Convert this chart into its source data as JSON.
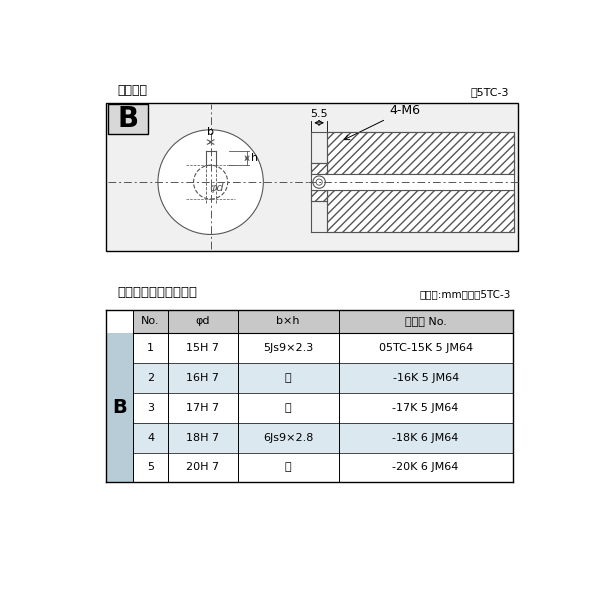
{
  "title_diagram": "軸穴形状",
  "fig_label": "図5TC-3",
  "letter_B": "B",
  "dim_55": "5.5",
  "dim_4M6": "4-M6",
  "label_b": "b",
  "label_h": "h",
  "label_phid": "φd",
  "table_title": "軸穴形状コード一覧表",
  "table_unit": "（単位:mm）　表5TC-3",
  "col_headers": [
    "No.",
    "φd",
    "b×h",
    "コード No."
  ],
  "rows": [
    [
      "1",
      "15H 7",
      "5Js9×2.3",
      "05TC-15K 5 JM64"
    ],
    [
      "2",
      "16H 7",
      "〃",
      "-16K 5 JM64"
    ],
    [
      "3",
      "17H 7",
      "〃",
      "-17K 5 JM64"
    ],
    [
      "4",
      "18H 7",
      "6Js9×2.8",
      "-18K 6 JM64"
    ],
    [
      "5",
      "20H 7",
      "〃",
      "-20K 6 JM64"
    ]
  ],
  "bg_color": "#ffffff",
  "table_header_bg": "#c8c8c8",
  "table_row_light_bg": "#dce8f0",
  "table_row_white_bg": "#ffffff",
  "B_cell_bg": "#b8ccd8",
  "draw_color": "#555555",
  "hatch_color": "#888888",
  "diagram_box_bg": "#f0f0f0",
  "B_label_bg": "#d8d8d8"
}
